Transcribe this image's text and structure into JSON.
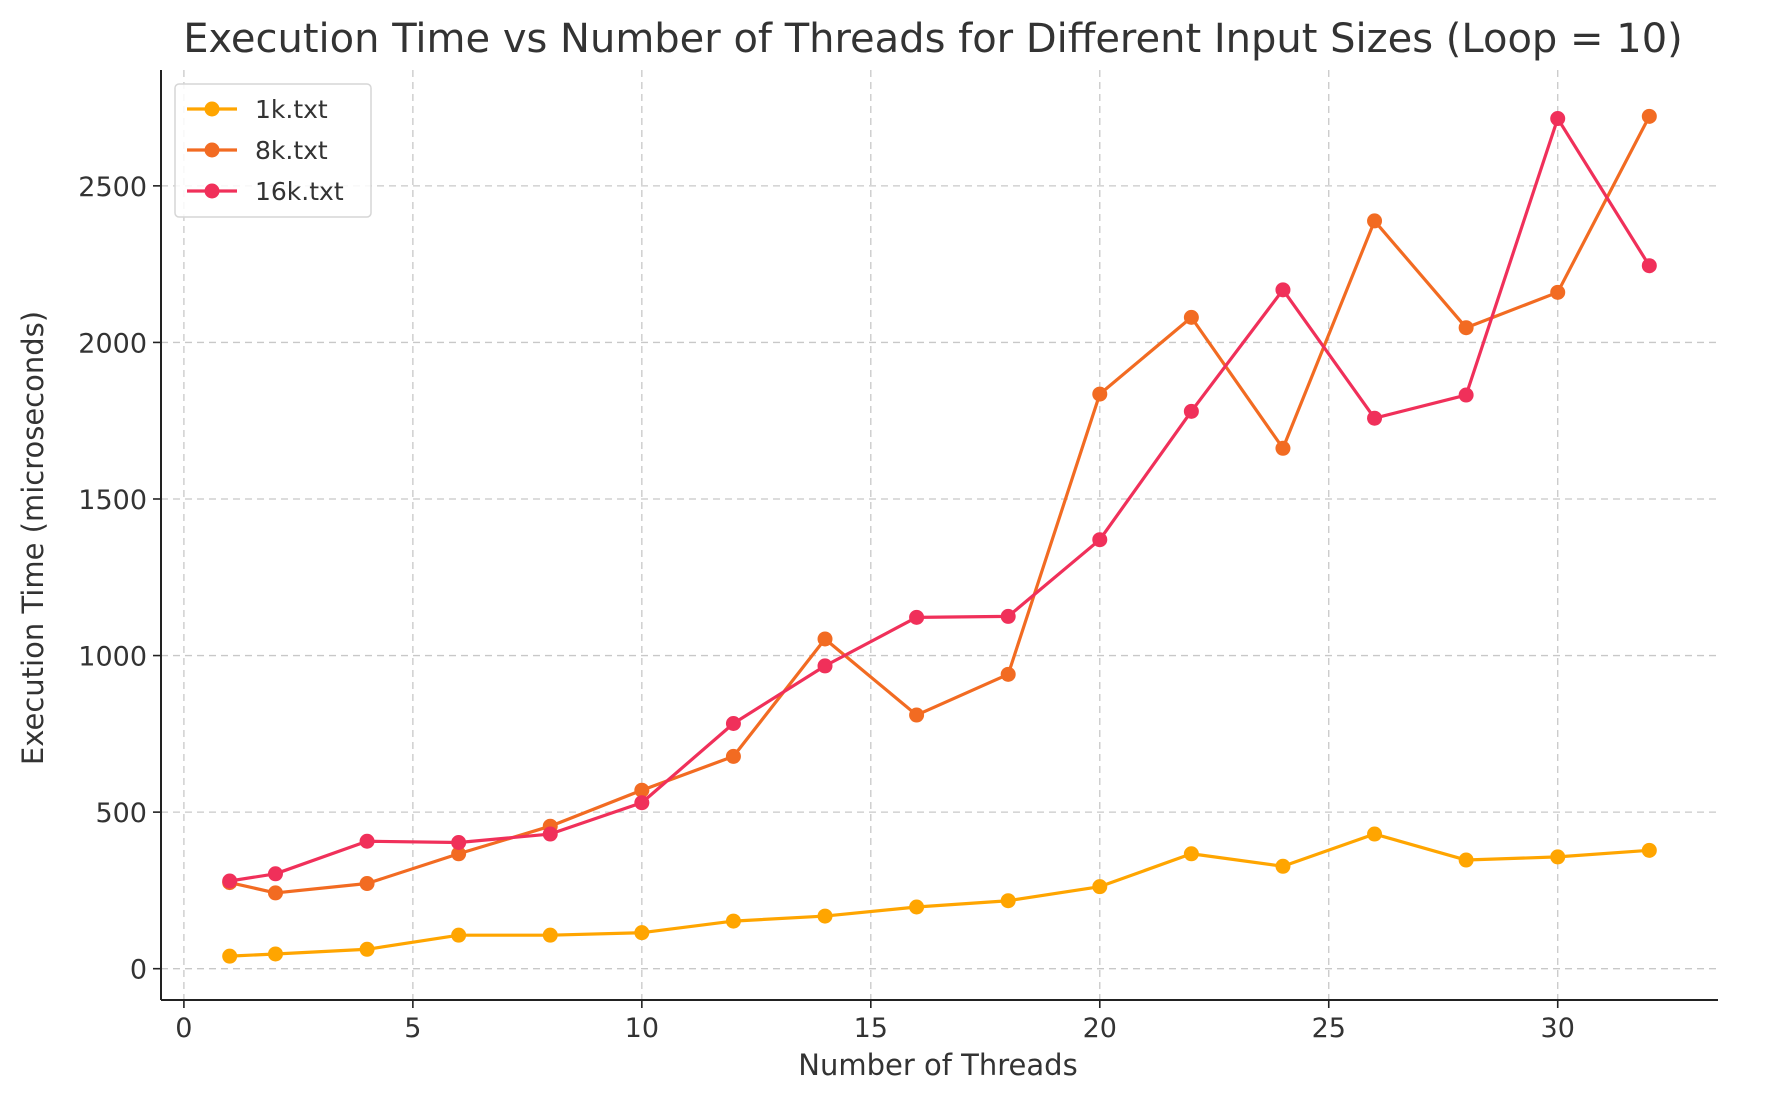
{
  "chart_data": {
    "type": "line",
    "title": "Execution Time vs Number of Threads for Different Input Sizes (Loop = 10)",
    "xlabel": "Number of Threads",
    "ylabel": "Execution Time (microseconds)",
    "xlim": [
      -0.5,
      33.5
    ],
    "ylim": [
      -100,
      2870
    ],
    "xticks": [
      0,
      5,
      10,
      15,
      20,
      25,
      30
    ],
    "yticks": [
      0,
      500,
      1000,
      1500,
      2000,
      2500
    ],
    "grid": true,
    "legend_position": "top-left",
    "x": [
      1,
      2,
      4,
      6,
      8,
      10,
      12,
      14,
      16,
      18,
      20,
      22,
      24,
      26,
      28,
      30,
      32
    ],
    "series": [
      {
        "name": "1k.txt",
        "color": "#FFA500",
        "values": [
          40,
          47,
          62,
          107,
          107,
          115,
          152,
          168,
          197,
          217,
          262,
          367,
          327,
          430,
          347,
          357,
          378
        ]
      },
      {
        "name": "8k.txt",
        "color": "#F26B22",
        "values": [
          275,
          242,
          272,
          367,
          455,
          570,
          678,
          1053,
          810,
          940,
          1835,
          2080,
          1662,
          2388,
          2047,
          2160,
          2722
        ]
      },
      {
        "name": "16k.txt",
        "color": "#F0305A",
        "values": [
          280,
          303,
          407,
          403,
          430,
          530,
          783,
          967,
          1122,
          1125,
          1370,
          1780,
          2168,
          1758,
          1832,
          2715,
          2245
        ]
      }
    ]
  }
}
